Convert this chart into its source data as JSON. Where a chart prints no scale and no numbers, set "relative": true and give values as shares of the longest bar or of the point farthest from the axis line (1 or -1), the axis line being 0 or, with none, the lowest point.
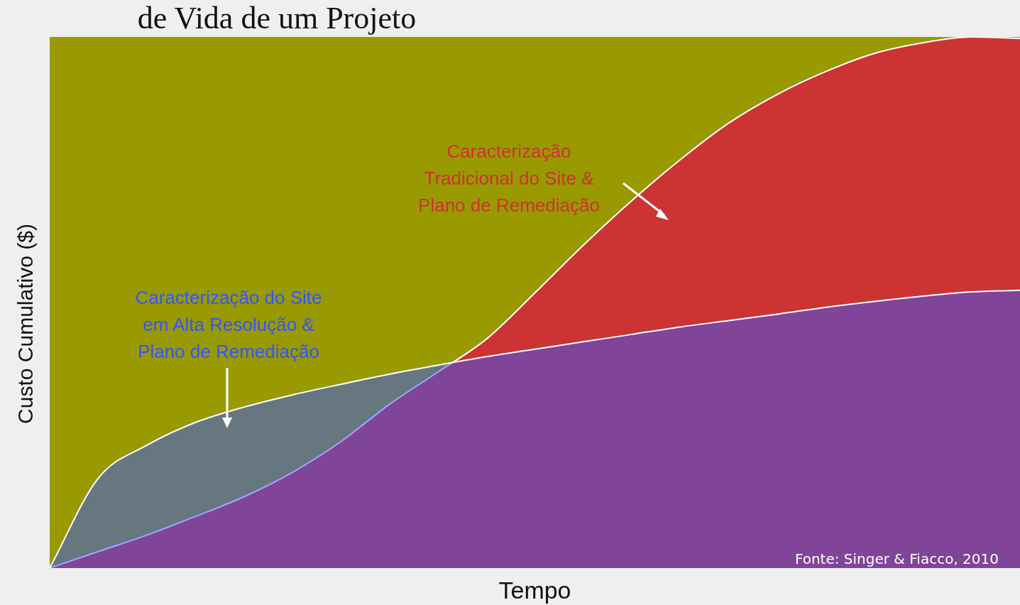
{
  "chart_data": {
    "type": "area",
    "title": "de Vida de um Projeto",
    "xlabel": "Tempo",
    "ylabel": "Custo Cumulativo ($)",
    "relative": true,
    "legend": false,
    "categories": [
      null,
      null,
      null,
      null,
      null,
      null,
      null,
      null,
      null,
      null,
      null,
      null,
      null,
      null,
      null,
      null,
      null,
      null,
      null,
      null,
      null
    ],
    "series": [
      {
        "color": "#3355ff",
        "values": [
          0,
          0.169,
          0.231,
          0.274,
          0.303,
          0.326,
          0.346,
          0.365,
          0.382,
          0.398,
          0.412,
          0.426,
          0.44,
          0.454,
          0.466,
          0.478,
          0.491,
          0.502,
          0.512,
          0.52,
          0.523
        ]
      },
      {
        "color": "#cc3333",
        "values": [
          0,
          0.031,
          0.062,
          0.097,
          0.134,
          0.18,
          0.238,
          0.308,
          0.369,
          0.431,
          0.518,
          0.608,
          0.692,
          0.769,
          0.838,
          0.892,
          0.935,
          0.969,
          0.989,
          1,
          0.997
        ]
      }
    ],
    "annotations": [
      "Caracterização do Site\nem Alta Resolução &\nPlano de Remediação",
      "Caracterização\nTradicional do Site &\nPlano de Remediação",
      "Fonte: Singer & Fiacco, 2010"
    ]
  }
}
